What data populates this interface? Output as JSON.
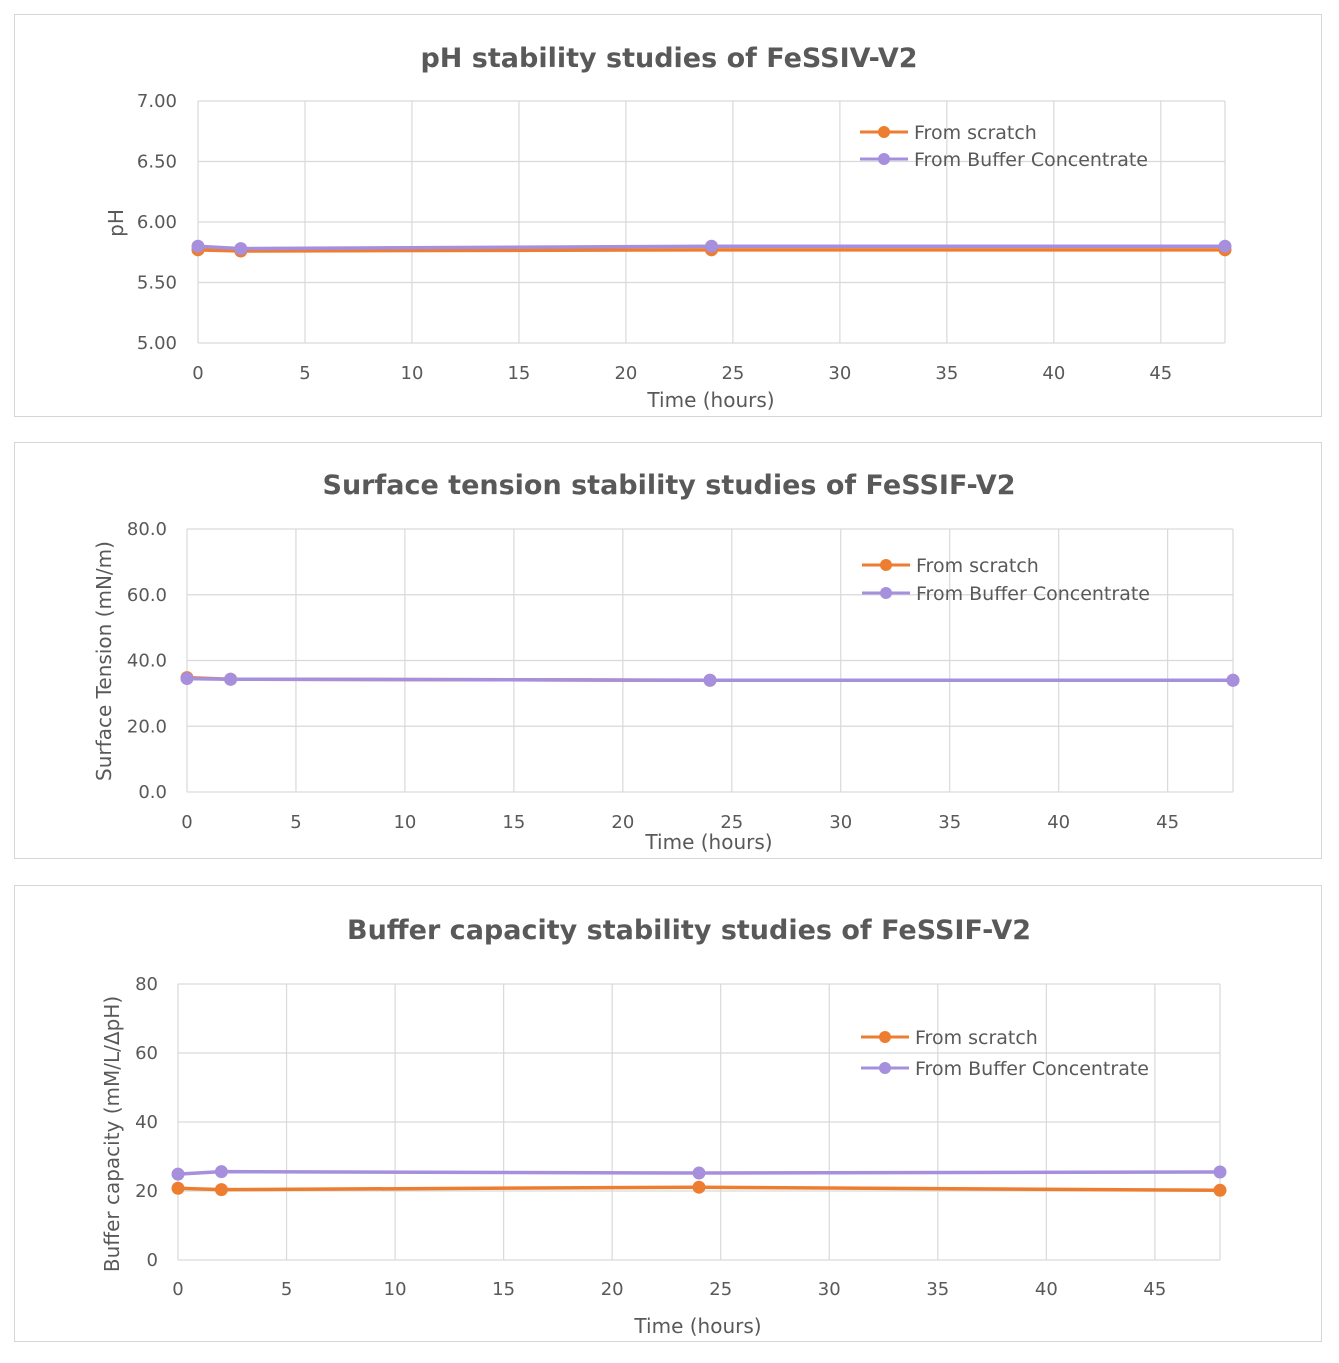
{
  "colors": {
    "from_scratch": "#ED7D31",
    "from_buffer_concentrate": "#A68FDD"
  },
  "chart_data": [
    {
      "type": "line",
      "title": "pH stability studies of FeSSIV-V2",
      "xlabel": "Time (hours)",
      "ylabel": "pH",
      "xlim": [
        0,
        48
      ],
      "ylim": [
        5.0,
        7.0
      ],
      "x_ticks": [
        "0",
        "5",
        "10",
        "15",
        "20",
        "25",
        "30",
        "35",
        "40",
        "45"
      ],
      "y_ticks": [
        "5.00",
        "5.50",
        "6.00",
        "6.50",
        "7.00"
      ],
      "grid": true,
      "legend_position": "top-right",
      "series": [
        {
          "name": "From scratch",
          "x": [
            0,
            2,
            24,
            48
          ],
          "y": [
            5.77,
            5.76,
            5.77,
            5.77
          ]
        },
        {
          "name": "From Buffer Concentrate",
          "x": [
            0,
            2,
            24,
            48
          ],
          "y": [
            5.8,
            5.78,
            5.8,
            5.8
          ]
        }
      ]
    },
    {
      "type": "line",
      "title": "Surface tension stability studies of FeSSIF-V2",
      "xlabel": "Time (hours)",
      "ylabel": "Surface Tension (mN/m)",
      "xlim": [
        0,
        48
      ],
      "ylim": [
        0,
        80
      ],
      "x_ticks": [
        "0",
        "5",
        "10",
        "15",
        "20",
        "25",
        "30",
        "35",
        "40",
        "45"
      ],
      "y_ticks": [
        "0.0",
        "20.0",
        "40.0",
        "60.0",
        "80.0"
      ],
      "grid": true,
      "legend_position": "top-right",
      "series": [
        {
          "name": "From scratch",
          "x": [
            0,
            2,
            24,
            48
          ],
          "y": [
            34.8,
            34.3,
            34.0,
            34.0
          ]
        },
        {
          "name": "From Buffer Concentrate",
          "x": [
            0,
            2,
            24,
            48
          ],
          "y": [
            34.5,
            34.3,
            34.0,
            34.0
          ]
        }
      ]
    },
    {
      "type": "line",
      "title": "Buffer capacity stability studies of FeSSIF-V2",
      "xlabel": "Time (hours)",
      "ylabel": "Buffer capacity (mM/L/ΔpH)",
      "xlim": [
        0,
        48
      ],
      "ylim": [
        0,
        80
      ],
      "x_ticks": [
        "0",
        "5",
        "10",
        "15",
        "20",
        "25",
        "30",
        "35",
        "40",
        "45"
      ],
      "y_ticks": [
        "0",
        "20",
        "40",
        "60",
        "80"
      ],
      "grid": true,
      "legend_position": "top-right",
      "series": [
        {
          "name": "From scratch",
          "x": [
            0,
            2,
            24,
            48
          ],
          "y": [
            20.8,
            20.4,
            21.1,
            20.2
          ]
        },
        {
          "name": "From Buffer Concentrate",
          "x": [
            0,
            2,
            24,
            48
          ],
          "y": [
            24.9,
            25.6,
            25.2,
            25.5
          ]
        }
      ]
    }
  ]
}
